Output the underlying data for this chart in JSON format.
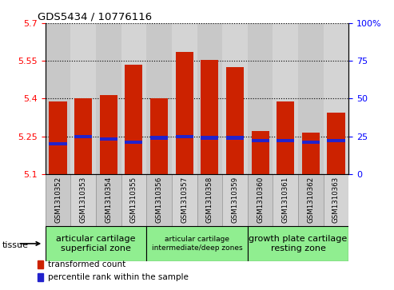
{
  "title": "GDS5434 / 10776116",
  "samples": [
    "GSM1310352",
    "GSM1310353",
    "GSM1310354",
    "GSM1310355",
    "GSM1310356",
    "GSM1310357",
    "GSM1310358",
    "GSM1310359",
    "GSM1310360",
    "GSM1310361",
    "GSM1310362",
    "GSM1310363"
  ],
  "bar_values": [
    5.39,
    5.4,
    5.415,
    5.535,
    5.4,
    5.585,
    5.555,
    5.525,
    5.27,
    5.39,
    5.265,
    5.345
  ],
  "percentile_values": [
    20,
    25,
    23,
    21,
    24,
    25,
    24,
    24,
    22,
    22,
    21,
    22
  ],
  "ylim_left": [
    5.1,
    5.7
  ],
  "ylim_right": [
    0,
    100
  ],
  "yticks_left": [
    5.1,
    5.25,
    5.4,
    5.55,
    5.7
  ],
  "ytick_labels_left": [
    "5.1",
    "5.25",
    "5.4",
    "5.55",
    "5.7"
  ],
  "yticks_right": [
    0,
    25,
    50,
    75,
    100
  ],
  "ytick_labels_right": [
    "0",
    "25",
    "50",
    "75",
    "100%"
  ],
  "bar_color": "#cc2200",
  "percentile_color": "#2222cc",
  "col_colors": [
    "#c8c8c8",
    "#d4d4d4"
  ],
  "tissue_groups": [
    {
      "start": 0,
      "end": 3,
      "label": "articular cartilage\nsuperficial zone",
      "fontsize": 8,
      "color": "#90ee90"
    },
    {
      "start": 4,
      "end": 7,
      "label": "articular cartilage\nintermediate/deep zones",
      "fontsize": 6.5,
      "color": "#90ee90"
    },
    {
      "start": 8,
      "end": 11,
      "label": "growth plate cartilage\nresting zone",
      "fontsize": 8,
      "color": "#90ee90"
    }
  ],
  "legend_items": [
    {
      "color": "#cc2200",
      "label": "transformed count"
    },
    {
      "color": "#2222cc",
      "label": "percentile rank within the sample"
    }
  ],
  "base_value": 5.1
}
